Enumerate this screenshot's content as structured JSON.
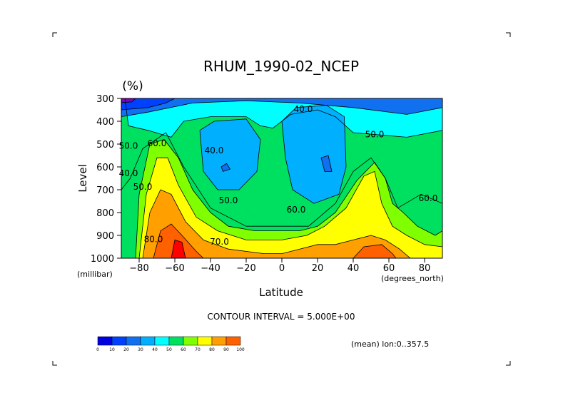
{
  "chart_data": {
    "type": "contour",
    "title": "RHUM_1990-02_NCEP",
    "units_label": "(%)",
    "xlabel": "Latitude",
    "ylabel": "Level",
    "x_units": "(degrees_north)",
    "y_units": "(millibar)",
    "xlim": [
      -90,
      90
    ],
    "ylim": [
      1000,
      300
    ],
    "x_ticks": [
      -80,
      -60,
      -40,
      -20,
      0,
      20,
      40,
      60,
      80
    ],
    "y_ticks": [
      300,
      400,
      500,
      600,
      700,
      800,
      900,
      1000
    ],
    "contour_interval_text": "CONTOUR INTERVAL = 5.000E+00",
    "mean_note": "(mean) lon:0..357.5",
    "contour_labels": [
      {
        "text": "40.0",
        "x": 12,
        "y": 360
      },
      {
        "text": "50.0",
        "x": 52,
        "y": 470
      },
      {
        "text": "40.0",
        "x": -38,
        "y": 540
      },
      {
        "text": "60.0",
        "x": -70,
        "y": 510
      },
      {
        "text": "50.0",
        "x": -30,
        "y": 760
      },
      {
        "text": "60.0",
        "x": 8,
        "y": 800
      },
      {
        "text": "70.0",
        "x": -35,
        "y": 940
      },
      {
        "text": "80.0",
        "x": -72,
        "y": 930
      },
      {
        "text": "60.0",
        "x": 82,
        "y": 750
      },
      {
        "text": "50.0",
        "x": -86,
        "y": 520
      },
      {
        "text": "40.0",
        "x": -86,
        "y": 640
      },
      {
        "text": "50.0",
        "x": -78,
        "y": 700
      }
    ],
    "colorbar": {
      "levels": [
        0,
        10,
        20,
        30,
        40,
        50,
        60,
        70,
        80,
        90,
        100
      ],
      "colors": [
        "#8000c0",
        "#0000e0",
        "#0040ff",
        "#1070f0",
        "#00b0ff",
        "#00ffff",
        "#00e060",
        "#80ff00",
        "#ffff00",
        "#ffa000",
        "#ff6000",
        "#ff0000"
      ]
    }
  }
}
